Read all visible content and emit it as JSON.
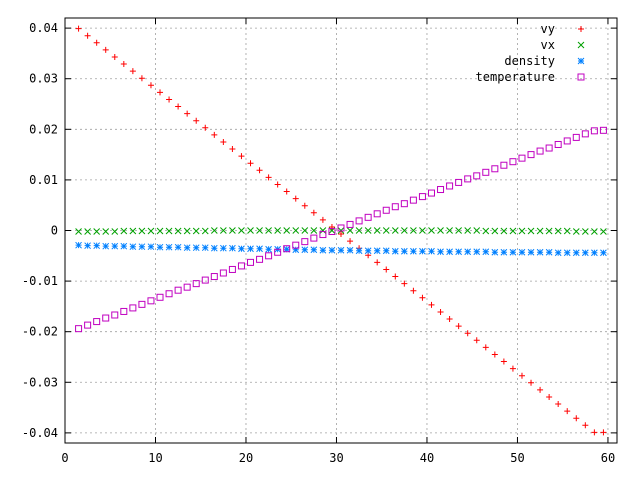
{
  "chart_data": {
    "type": "scatter",
    "title": "",
    "xlabel": "",
    "ylabel": "",
    "xlim": [
      0,
      61
    ],
    "ylim": [
      -0.042,
      0.042
    ],
    "xticks": [
      0,
      10,
      20,
      30,
      40,
      50,
      60
    ],
    "yticks": [
      -0.04,
      -0.03,
      -0.02,
      -0.01,
      0,
      0.01,
      0.02,
      0.03,
      0.04
    ],
    "xtick_labels": [
      "0",
      "10",
      "20",
      "30",
      "40",
      "50",
      "60"
    ],
    "ytick_labels": [
      "-0.04",
      "-0.03",
      "-0.02",
      "-0.01",
      "0",
      "0.01",
      "0.02",
      "0.03",
      "0.04"
    ],
    "grid": true,
    "legend_position": "top-right",
    "x": [
      1.5,
      2.5,
      3.5,
      4.5,
      5.5,
      6.5,
      7.5,
      8.5,
      9.5,
      10.5,
      11.5,
      12.5,
      13.5,
      14.5,
      15.5,
      16.5,
      17.5,
      18.5,
      19.5,
      20.5,
      21.5,
      22.5,
      23.5,
      24.5,
      25.5,
      26.5,
      27.5,
      28.5,
      29.5,
      30.5,
      31.5,
      32.5,
      33.5,
      34.5,
      35.5,
      36.5,
      37.5,
      38.5,
      39.5,
      40.5,
      41.5,
      42.5,
      43.5,
      44.5,
      45.5,
      46.5,
      47.5,
      48.5,
      49.5,
      50.5,
      51.5,
      52.5,
      53.5,
      54.5,
      55.5,
      56.5,
      57.5,
      58.5,
      59.5
    ],
    "series": [
      {
        "name": "vy",
        "marker": "plus",
        "color": "#ff0000",
        "values": [
          0.0399,
          0.0385,
          0.0371,
          0.0357,
          0.0343,
          0.0329,
          0.0315,
          0.0301,
          0.0287,
          0.0273,
          0.0259,
          0.0245,
          0.0231,
          0.0217,
          0.0203,
          0.0189,
          0.0175,
          0.0161,
          0.0147,
          0.0133,
          0.0119,
          0.0105,
          0.0091,
          0.0077,
          0.0063,
          0.0049,
          0.0035,
          0.0021,
          0.0007,
          -0.0007,
          -0.0021,
          -0.0035,
          -0.0049,
          -0.0063,
          -0.0077,
          -0.0091,
          -0.0105,
          -0.0119,
          -0.0133,
          -0.0147,
          -0.0161,
          -0.0175,
          -0.0189,
          -0.0203,
          -0.0217,
          -0.0231,
          -0.0245,
          -0.0259,
          -0.0273,
          -0.0287,
          -0.0301,
          -0.0315,
          -0.0329,
          -0.0343,
          -0.0357,
          -0.0371,
          -0.0385,
          -0.0399,
          -0.0399
        ]
      },
      {
        "name": "vx",
        "marker": "cross",
        "color": "#00a000",
        "values": [
          -0.0002,
          -0.0002,
          -0.0002,
          -0.0002,
          -0.0002,
          -0.0001,
          -0.0001,
          -0.0001,
          -0.0001,
          -0.0001,
          -0.0001,
          -0.0001,
          -0.0001,
          -0.0001,
          -0.0001,
          0.0,
          0.0,
          0.0,
          0.0,
          0.0,
          0.0,
          0.0,
          0.0,
          0.0,
          0.0,
          0.0,
          0.0,
          0.0,
          0.0,
          0.0,
          0.0,
          0.0,
          0.0,
          0.0,
          0.0,
          0.0,
          0.0,
          0.0,
          0.0,
          0.0,
          0.0,
          0.0,
          0.0,
          0.0,
          0.0,
          -0.0001,
          -0.0001,
          -0.0001,
          -0.0001,
          -0.0001,
          -0.0001,
          -0.0001,
          -0.0001,
          -0.0001,
          -0.0001,
          -0.0002,
          -0.0002,
          -0.0002,
          -0.0002
        ]
      },
      {
        "name": "density",
        "marker": "star",
        "color": "#0080ff",
        "values": [
          -0.0029,
          -0.003,
          -0.003,
          -0.0031,
          -0.0031,
          -0.0031,
          -0.0032,
          -0.0032,
          -0.0032,
          -0.0033,
          -0.0033,
          -0.0033,
          -0.0034,
          -0.0034,
          -0.0034,
          -0.0035,
          -0.0035,
          -0.0035,
          -0.0036,
          -0.0036,
          -0.0036,
          -0.0037,
          -0.0037,
          -0.0037,
          -0.0038,
          -0.0038,
          -0.0038,
          -0.0039,
          -0.0039,
          -0.0039,
          -0.0039,
          -0.004,
          -0.004,
          -0.004,
          -0.004,
          -0.0041,
          -0.0041,
          -0.0041,
          -0.0041,
          -0.0041,
          -0.0042,
          -0.0042,
          -0.0042,
          -0.0042,
          -0.0042,
          -0.0042,
          -0.0043,
          -0.0043,
          -0.0043,
          -0.0043,
          -0.0043,
          -0.0043,
          -0.0043,
          -0.0044,
          -0.0044,
          -0.0044,
          -0.0044,
          -0.0044,
          -0.0044
        ]
      },
      {
        "name": "temperature",
        "marker": "square",
        "color": "#c000c0",
        "values": [
          -0.0194,
          -0.0187,
          -0.018,
          -0.0173,
          -0.0167,
          -0.016,
          -0.0153,
          -0.0146,
          -0.0139,
          -0.0132,
          -0.0125,
          -0.0118,
          -0.0112,
          -0.0105,
          -0.0098,
          -0.0091,
          -0.0084,
          -0.0077,
          -0.007,
          -0.0063,
          -0.0057,
          -0.005,
          -0.0043,
          -0.0036,
          -0.0029,
          -0.0022,
          -0.0015,
          -0.0008,
          -0.0002,
          0.0005,
          0.0012,
          0.0019,
          0.0026,
          0.0033,
          0.004,
          0.0047,
          0.0053,
          0.006,
          0.0067,
          0.0074,
          0.0081,
          0.0088,
          0.0095,
          0.0102,
          0.0108,
          0.0115,
          0.0122,
          0.0129,
          0.0136,
          0.0143,
          0.015,
          0.0157,
          0.0163,
          0.017,
          0.0177,
          0.0184,
          0.0191,
          0.0197,
          0.0198
        ]
      }
    ]
  }
}
